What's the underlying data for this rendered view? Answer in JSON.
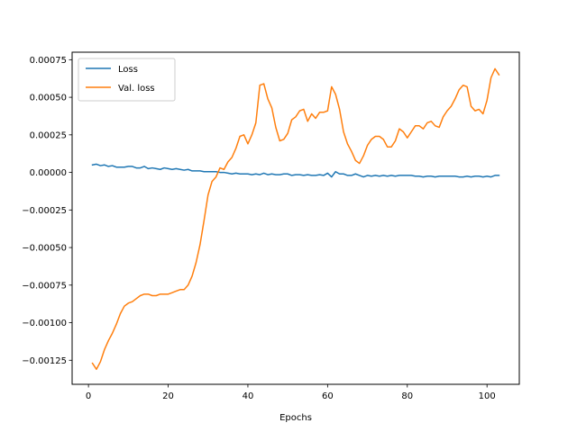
{
  "chart_data": {
    "type": "line",
    "title": "",
    "xlabel": "Epochs",
    "ylabel": "",
    "xlim": [
      -4.1,
      108.1
    ],
    "ylim": [
      -0.00141,
      0.0008
    ],
    "xticks": [
      0,
      20,
      40,
      60,
      80,
      100
    ],
    "xtick_labels": [
      "0",
      "20",
      "40",
      "60",
      "80",
      "100"
    ],
    "yticks": [
      -0.00125,
      -0.001,
      -0.00075,
      -0.0005,
      -0.00025,
      0,
      0.00025,
      0.0005,
      0.00075
    ],
    "ytick_labels": [
      "−0.00125",
      "−0.00100",
      "−0.00075",
      "−0.00050",
      "−0.00025",
      "0.00000",
      "0.00025",
      "0.00050",
      "0.00075"
    ],
    "grid": false,
    "legend_position": "top-left",
    "series": [
      {
        "name": "Loss",
        "color": "#1f77b4",
        "x": [
          1,
          2,
          3,
          4,
          5,
          6,
          7,
          8,
          9,
          10,
          11,
          12,
          13,
          14,
          15,
          16,
          17,
          18,
          19,
          20,
          21,
          22,
          23,
          24,
          25,
          26,
          27,
          28,
          29,
          30,
          31,
          32,
          33,
          34,
          35,
          36,
          37,
          38,
          39,
          40,
          41,
          42,
          43,
          44,
          45,
          46,
          47,
          48,
          49,
          50,
          51,
          52,
          53,
          54,
          55,
          56,
          57,
          58,
          59,
          60,
          61,
          62,
          63,
          64,
          65,
          66,
          67,
          68,
          69,
          70,
          71,
          72,
          73,
          74,
          75,
          76,
          77,
          78,
          79,
          80,
          81,
          82,
          83,
          84,
          85,
          86,
          87,
          88,
          89,
          90,
          91,
          92,
          93,
          94,
          95,
          96,
          97,
          98,
          99,
          100,
          101,
          102,
          103
        ],
        "values": [
          5e-05,
          5.5e-05,
          4.5e-05,
          5e-05,
          4e-05,
          4.5e-05,
          3.5e-05,
          3.5e-05,
          3.5e-05,
          4e-05,
          4e-05,
          3e-05,
          3e-05,
          4e-05,
          2.5e-05,
          3e-05,
          2.5e-05,
          2e-05,
          3e-05,
          2.5e-05,
          2e-05,
          2.5e-05,
          2e-05,
          1.5e-05,
          2e-05,
          1e-05,
          1e-05,
          1e-05,
          5e-06,
          5e-06,
          5e-06,
          5e-06,
          0.0,
          0.0,
          -5e-06,
          -1e-05,
          -5e-06,
          -1e-05,
          -1e-05,
          -1e-05,
          -1.5e-05,
          -1e-05,
          -1.5e-05,
          -5e-06,
          -1.5e-05,
          -1e-05,
          -1.5e-05,
          -1.5e-05,
          -1e-05,
          -1e-05,
          -2e-05,
          -1.5e-05,
          -1.5e-05,
          -2e-05,
          -1.5e-05,
          -2e-05,
          -2e-05,
          -1.5e-05,
          -2e-05,
          -5e-06,
          -3e-05,
          5e-06,
          -1e-05,
          -1e-05,
          -2e-05,
          -2e-05,
          -1e-05,
          -2e-05,
          -3e-05,
          -2e-05,
          -2.5e-05,
          -2e-05,
          -2.5e-05,
          -2e-05,
          -2.5e-05,
          -2e-05,
          -2.5e-05,
          -2e-05,
          -2e-05,
          -2e-05,
          -2e-05,
          -2.5e-05,
          -2.5e-05,
          -3e-05,
          -2.5e-05,
          -2.5e-05,
          -3e-05,
          -2.5e-05,
          -2.5e-05,
          -2.5e-05,
          -2.5e-05,
          -2.5e-05,
          -3e-05,
          -3e-05,
          -2.5e-05,
          -3e-05,
          -2.5e-05,
          -2.5e-05,
          -3e-05,
          -2.5e-05,
          -3e-05,
          -2e-05,
          -2e-05
        ]
      },
      {
        "name": "Val. loss",
        "color": "#ff7f0e",
        "x": [
          1,
          2,
          3,
          4,
          5,
          6,
          7,
          8,
          9,
          10,
          11,
          12,
          13,
          14,
          15,
          16,
          17,
          18,
          19,
          20,
          21,
          22,
          23,
          24,
          25,
          26,
          27,
          28,
          29,
          30,
          31,
          32,
          33,
          34,
          35,
          36,
          37,
          38,
          39,
          40,
          41,
          42,
          43,
          44,
          45,
          46,
          47,
          48,
          49,
          50,
          51,
          52,
          53,
          54,
          55,
          56,
          57,
          58,
          59,
          60,
          61,
          62,
          63,
          64,
          65,
          66,
          67,
          68,
          69,
          70,
          71,
          72,
          73,
          74,
          75,
          76,
          77,
          78,
          79,
          80,
          81,
          82,
          83,
          84,
          85,
          86,
          87,
          88,
          89,
          90,
          91,
          92,
          93,
          94,
          95,
          96,
          97,
          98,
          99,
          100,
          101,
          102,
          103
        ],
        "values": [
          -0.00127,
          -0.00131,
          -0.00126,
          -0.00118,
          -0.00112,
          -0.00107,
          -0.00101,
          -0.00094,
          -0.00089,
          -0.00087,
          -0.00086,
          -0.00084,
          -0.00082,
          -0.00081,
          -0.00081,
          -0.00082,
          -0.00082,
          -0.00081,
          -0.00081,
          -0.00081,
          -0.0008,
          -0.00079,
          -0.00078,
          -0.00078,
          -0.00075,
          -0.00069,
          -0.0006,
          -0.00048,
          -0.00032,
          -0.00015,
          -6e-05,
          -3e-05,
          3e-05,
          2e-05,
          7e-05,
          0.0001,
          0.00016,
          0.00024,
          0.00025,
          0.00019,
          0.00025,
          0.00033,
          0.00058,
          0.00059,
          0.00049,
          0.00043,
          0.0003,
          0.00021,
          0.00022,
          0.00026,
          0.00035,
          0.00037,
          0.00041,
          0.00042,
          0.00034,
          0.00039,
          0.00036,
          0.0004,
          0.0004,
          0.00041,
          0.00057,
          0.00052,
          0.00042,
          0.00027,
          0.00019,
          0.00014,
          8e-05,
          6e-05,
          0.00011,
          0.00018,
          0.00022,
          0.00024,
          0.00024,
          0.00022,
          0.00017,
          0.00017,
          0.00021,
          0.00029,
          0.00027,
          0.00023,
          0.00027,
          0.00031,
          0.00031,
          0.00029,
          0.00033,
          0.00034,
          0.00031,
          0.0003,
          0.00037,
          0.00041,
          0.00044,
          0.00049,
          0.00055,
          0.00058,
          0.00057,
          0.00044,
          0.00041,
          0.00042,
          0.00039,
          0.00048,
          0.00063,
          0.00069,
          0.00065
        ]
      }
    ]
  }
}
